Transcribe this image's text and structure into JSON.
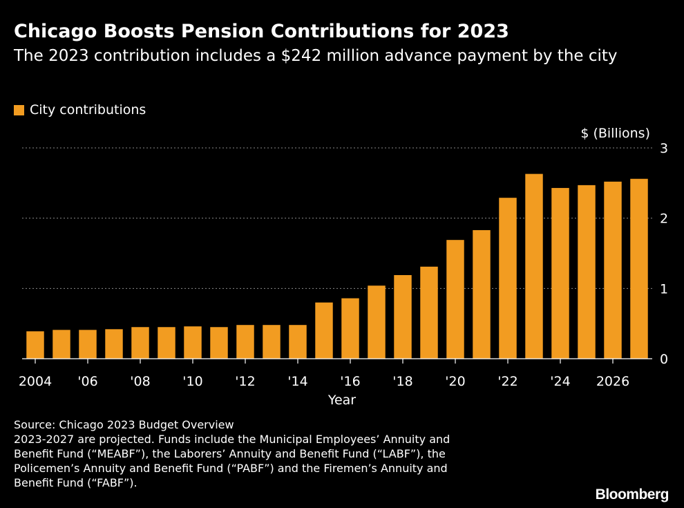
{
  "header": {
    "title": "Chicago Boosts Pension Contributions for 2023",
    "subtitle": "The 2023 contribution includes a $242 million advance payment by the city"
  },
  "legend": {
    "label": "City contributions",
    "color": "#f29c21"
  },
  "chart_data": {
    "type": "bar",
    "title": "Chicago Boosts Pension Contributions for 2023",
    "subtitle": "The 2023 contribution includes a $242 million advance payment by the city",
    "xlabel": "Year",
    "ylabel": "$ (Billions)",
    "ylim": [
      0,
      3
    ],
    "y_ticks": [
      "0",
      "1",
      "2",
      "3"
    ],
    "x_tick_labels": [
      "2004",
      "'06",
      "'08",
      "'10",
      "'12",
      "'14",
      "'16",
      "'18",
      "'20",
      "'22",
      "'24",
      "2026"
    ],
    "x_tick_years": [
      2004,
      2006,
      2008,
      2010,
      2012,
      2014,
      2016,
      2018,
      2020,
      2022,
      2024,
      2026
    ],
    "categories": [
      2004,
      2005,
      2006,
      2007,
      2008,
      2009,
      2010,
      2011,
      2012,
      2013,
      2014,
      2015,
      2016,
      2017,
      2018,
      2019,
      2020,
      2021,
      2022,
      2023,
      2024,
      2025,
      2026,
      2027
    ],
    "series": [
      {
        "name": "City contributions",
        "color": "#f29c21",
        "values": [
          0.39,
          0.41,
          0.41,
          0.42,
          0.45,
          0.45,
          0.46,
          0.45,
          0.48,
          0.48,
          0.48,
          0.8,
          0.86,
          1.04,
          1.19,
          1.31,
          1.69,
          1.83,
          2.29,
          2.63,
          2.43,
          2.47,
          2.52,
          2.56
        ]
      }
    ],
    "grid": true,
    "legend_position": "top-left"
  },
  "footer": {
    "source": "Source: Chicago 2023 Budget Overview",
    "note_lines": [
      "2023-2027 are projected. Funds include the Municipal Employees’ Annuity and",
      "Benefit Fund (“MEABF”), the Laborers’ Annuity and Benefit Fund (“LABF”), the",
      "Policemen’s Annuity and Benefit Fund (“PABF”) and the Firemen’s Annuity and",
      "Benefit Fund (“FABF”)."
    ]
  },
  "branding": {
    "logo": "Bloomberg"
  }
}
